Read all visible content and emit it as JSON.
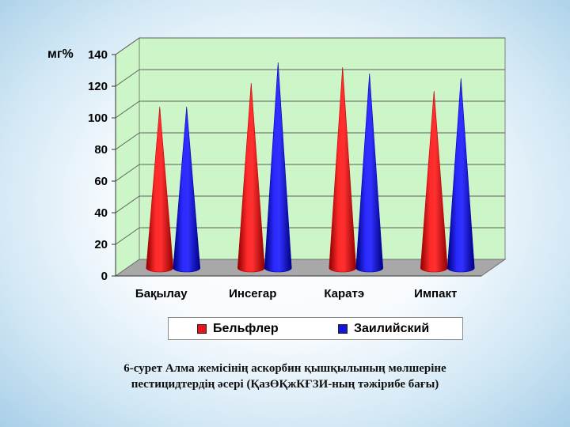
{
  "chart_data": {
    "type": "bar",
    "shape": "cone",
    "ylabel": "мг%",
    "ylim": [
      0,
      140
    ],
    "yticks": [
      0,
      20,
      40,
      60,
      80,
      100,
      120,
      140
    ],
    "categories": [
      "Бақылау",
      "Инсегар",
      "Каратэ",
      "Импакт"
    ],
    "series": [
      {
        "name": "Бельфлер",
        "color": "#e8141a",
        "values": [
          102,
          117,
          127,
          112
        ]
      },
      {
        "name": "Заилийский",
        "color": "#1515d8",
        "values": [
          102,
          130,
          123,
          120
        ]
      }
    ],
    "grid": true,
    "legend_position": "bottom"
  },
  "caption": {
    "line1": "6-сурет Алма жемісінің аскорбин қышқылының мөлшеріне",
    "line2": "пестицидтердің әсері (ҚазӨҚжКҒЗИ-ның тәжірибе бағы)"
  },
  "colors": {
    "plot_wall": "#ccf5c8",
    "plot_floor": "#a8a8a8",
    "legend_border": "#8a8a8a"
  }
}
